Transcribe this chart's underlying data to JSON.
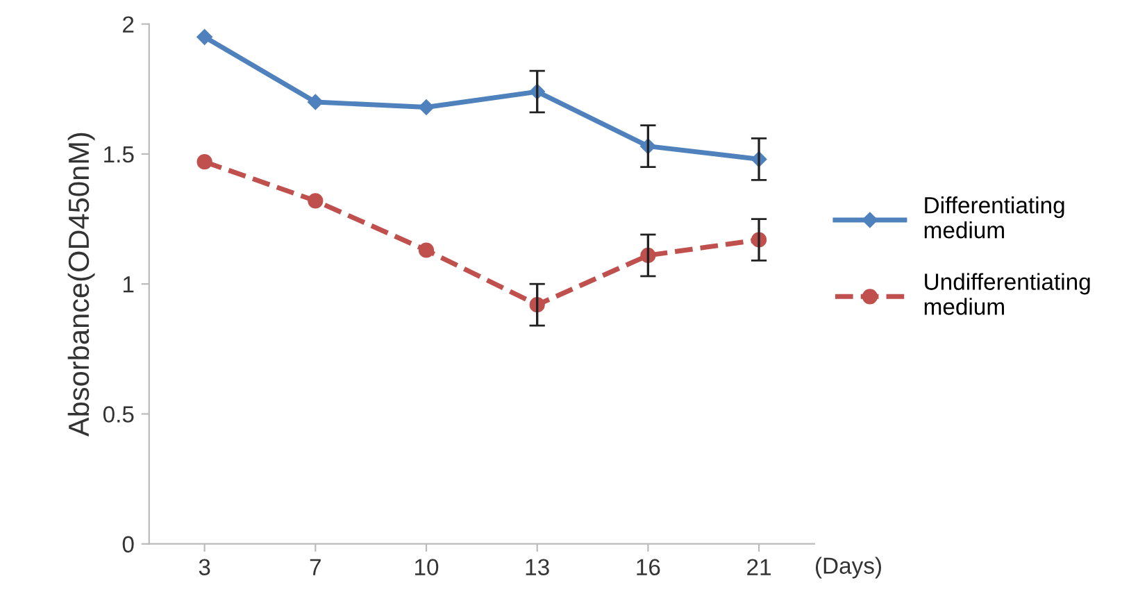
{
  "chart_data": {
    "type": "line",
    "ylabel": "Absorbance(OD450nM)",
    "xlabel": "(Days)",
    "categories": [
      "3",
      "7",
      "10",
      "13",
      "16",
      "21"
    ],
    "series": [
      {
        "name": "Differentiating medium",
        "color": "#4f81bd",
        "marker": "diamond",
        "line_style": "solid",
        "values": [
          1.95,
          1.7,
          1.68,
          1.74,
          1.53,
          1.48
        ],
        "errors": [
          null,
          null,
          null,
          0.08,
          0.08,
          0.08
        ]
      },
      {
        "name": "Undifferentiating medium",
        "color": "#c0504d",
        "marker": "circle",
        "line_style": "dashed",
        "values": [
          1.47,
          1.32,
          1.13,
          0.92,
          1.11,
          1.17
        ],
        "errors": [
          null,
          null,
          null,
          0.08,
          0.08,
          0.08
        ]
      }
    ],
    "ylim": [
      0,
      2
    ],
    "yticks": [
      0,
      0.5,
      1,
      1.5,
      2
    ],
    "grid": false,
    "legend": "right"
  }
}
